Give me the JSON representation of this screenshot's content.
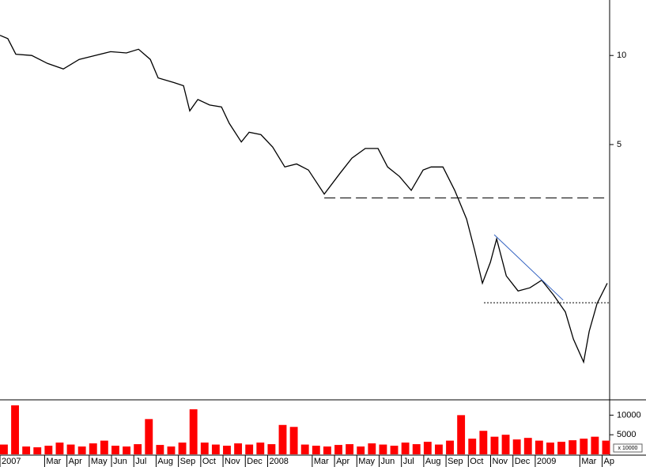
{
  "chart_data": [
    {
      "type": "line",
      "log_scale": true,
      "color": "#000000",
      "x": [
        0,
        0.35,
        0.71,
        1.42,
        2.13,
        2.84,
        3.55,
        4.26,
        4.96,
        5.67,
        6.21,
        6.74,
        7.09,
        7.8,
        8.23,
        8.51,
        8.87,
        9.4,
        9.93,
        10.28,
        10.82,
        11.17,
        11.7,
        12.23,
        12.77,
        13.3,
        13.83,
        14.54,
        15.25,
        15.78,
        16.38,
        16.95,
        17.38,
        17.91,
        18.44,
        18.97,
        19.33,
        19.86,
        20.39,
        20.92,
        21.28,
        21.63,
        21.99,
        22.27,
        22.7,
        23.23,
        23.76,
        24.29,
        24.82,
        25.35,
        25.71,
        26.17,
        26.42,
        26.77,
        27.23
      ],
      "values": [
        11.7,
        11.4,
        10.1,
        10,
        9.4,
        9.0,
        9.7,
        10,
        10.3,
        10.2,
        10.5,
        9.7,
        8.4,
        8.1,
        7.9,
        6.5,
        7.1,
        6.8,
        6.7,
        5.9,
        5.1,
        5.5,
        5.4,
        4.9,
        4.2,
        4.3,
        4.1,
        3.4,
        4.0,
        4.5,
        4.85,
        4.85,
        4.2,
        3.9,
        3.5,
        4.1,
        4.2,
        4.2,
        3.5,
        2.8,
        2.2,
        1.7,
        2.0,
        2.4,
        1.8,
        1.6,
        1.64,
        1.74,
        1.55,
        1.36,
        1.1,
        0.92,
        1.17,
        1.45,
        1.7
      ],
      "xlim": [
        0,
        27.3
      ],
      "ylim": [
        0.69,
        15.4
      ],
      "yticks": [
        5,
        10
      ],
      "xticks": [
        {
          "value": 0,
          "label": "2007"
        },
        {
          "value": 2,
          "label": "Mar"
        },
        {
          "value": 3,
          "label": "Apr"
        },
        {
          "value": 4,
          "label": "May"
        },
        {
          "value": 5,
          "label": "Jun"
        },
        {
          "value": 6,
          "label": "Jul"
        },
        {
          "value": 7,
          "label": "Aug"
        },
        {
          "value": 8,
          "label": "Sep"
        },
        {
          "value": 9,
          "label": "Oct"
        },
        {
          "value": 10,
          "label": "Nov"
        },
        {
          "value": 11,
          "label": "Dec"
        },
        {
          "value": 12,
          "label": "2008"
        },
        {
          "value": 14,
          "label": "Mar"
        },
        {
          "value": 15,
          "label": "Apr"
        },
        {
          "value": 16,
          "label": "May"
        },
        {
          "value": 17,
          "label": "Jun"
        },
        {
          "value": 18,
          "label": "Jul"
        },
        {
          "value": 19,
          "label": "Aug"
        },
        {
          "value": 20,
          "label": "Sep"
        },
        {
          "value": 21,
          "label": "Oct"
        },
        {
          "value": 22,
          "label": "Nov"
        },
        {
          "value": 23,
          "label": "Dec"
        },
        {
          "value": 24,
          "label": "2009"
        },
        {
          "value": 26,
          "label": "Mar"
        },
        {
          "value": 27,
          "label": "Ap"
        }
      ],
      "lines": [
        {
          "x": [
            14.54,
            27.3
          ],
          "y": [
            3.3,
            3.3
          ],
          "style": "dashed",
          "color": "#000000"
        },
        {
          "x": [
            21.7,
            27.3
          ],
          "y": [
            1.46,
            1.46
          ],
          "style": "dotted",
          "color": "#000000"
        },
        {
          "x": [
            22.16,
            25.25
          ],
          "y": [
            2.48,
            1.49
          ],
          "style": "solid",
          "color": "#3060c0"
        }
      ]
    },
    {
      "type": "bar",
      "color": "#ff0000",
      "unit_label": "x 10000",
      "x": [
        0,
        0.5,
        1,
        1.5,
        2,
        2.5,
        3,
        3.5,
        4,
        4.5,
        5,
        5.5,
        6,
        6.5,
        7,
        7.5,
        8,
        8.5,
        9,
        9.5,
        10,
        10.5,
        11,
        11.5,
        12,
        12.5,
        13,
        13.5,
        14,
        14.5,
        15,
        15.5,
        16,
        16.5,
        17,
        17.5,
        18,
        18.5,
        19,
        19.5,
        20,
        20.5,
        21,
        21.5,
        22,
        22.5,
        23,
        23.5,
        24,
        24.5,
        25,
        25.5,
        26,
        26.5,
        27
      ],
      "values": [
        2500,
        12500,
        2000,
        1800,
        2200,
        3000,
        2500,
        2000,
        2800,
        3500,
        2200,
        2000,
        2600,
        9000,
        2400,
        2000,
        3000,
        11500,
        3000,
        2500,
        2200,
        2800,
        2500,
        3000,
        2600,
        7500,
        7000,
        2500,
        2200,
        2000,
        2400,
        2600,
        2000,
        2800,
        2500,
        2200,
        3000,
        2600,
        3200,
        2500,
        3500,
        10000,
        4000,
        6000,
        4500,
        5000,
        3800,
        4200,
        3500,
        3000,
        3200,
        3600,
        4000,
        4500,
        3500
      ],
      "xlim": [
        0,
        27.3
      ],
      "ylim": [
        0,
        13500
      ],
      "yticks": [
        5000,
        10000
      ]
    }
  ]
}
